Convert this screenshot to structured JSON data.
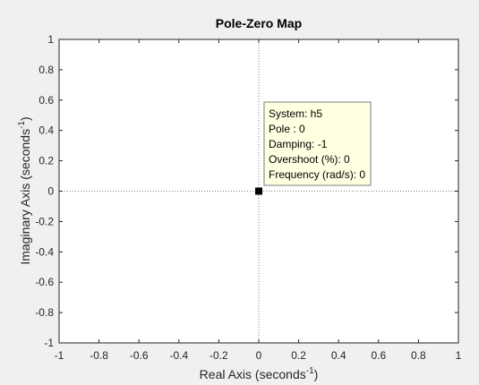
{
  "chart_data": {
    "type": "scatter",
    "title": "Pole-Zero Map",
    "xlabel": "Real Axis (seconds",
    "ylabel": "Imaginary Axis (seconds",
    "axis_unit_exponent": "-1",
    "xlim": [
      -1,
      1
    ],
    "ylim": [
      -1,
      1
    ],
    "xticks": [
      -1,
      -0.8,
      -0.6,
      -0.4,
      -0.2,
      0,
      0.2,
      0.4,
      0.6,
      0.8,
      1
    ],
    "yticks": [
      -1,
      -0.8,
      -0.6,
      -0.4,
      -0.2,
      0,
      0.2,
      0.4,
      0.6,
      0.8,
      1
    ],
    "xtick_labels": [
      "-1",
      "-0.8",
      "-0.6",
      "-0.4",
      "-0.2",
      "0",
      "0.2",
      "0.4",
      "0.6",
      "0.8",
      "1"
    ],
    "ytick_labels": [
      "-1",
      "-0.8",
      "-0.6",
      "-0.4",
      "-0.2",
      "0",
      "0.2",
      "0.4",
      "0.6",
      "0.8",
      "1"
    ],
    "grid": false,
    "reference_lines": {
      "x": 0,
      "y": 0,
      "style": "dotted"
    },
    "series": [
      {
        "name": "h5",
        "points": [
          {
            "x": 0,
            "y": 0
          }
        ]
      }
    ],
    "datatip": {
      "lines": [
        "System: h5",
        "Pole : 0",
        "Damping: -1",
        "Overshoot (%): 0",
        "Frequency (rad/s): 0"
      ]
    },
    "colors": {
      "figure_background": "#f0f0f0",
      "axes_background": "#ffffff",
      "axes_border": "#262626",
      "reference_line": "#7f7f7f",
      "marker": "#000000",
      "datatip_background": "#ffffe1",
      "datatip_border": "#7f7f7f"
    }
  }
}
